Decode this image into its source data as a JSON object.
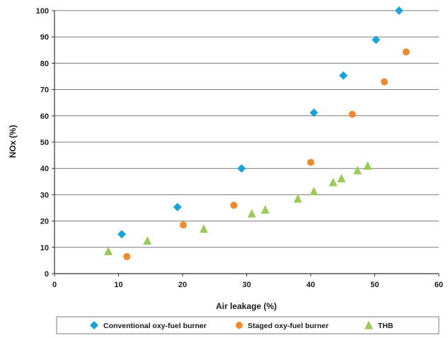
{
  "chart_data": {
    "type": "scatter",
    "title": "",
    "xlabel": "Air leakage (%)",
    "ylabel": "NOx (%)",
    "xlim": [
      0,
      60
    ],
    "ylim": [
      0,
      100
    ],
    "xticks": [
      0,
      10,
      20,
      30,
      40,
      50,
      60
    ],
    "yticks": [
      0,
      10,
      20,
      30,
      40,
      50,
      60,
      70,
      80,
      90,
      100
    ],
    "grid": "horizontal",
    "legend": "bottom",
    "series": [
      {
        "name": "Conventional oxy-fuel burner",
        "marker": "diamond",
        "color": "#1aa3d9",
        "x": [
          10.5,
          19.2,
          29.2,
          40.5,
          45.1,
          50.2,
          53.8
        ],
        "y": [
          15,
          25.3,
          40,
          61.2,
          75.3,
          88.9,
          100
        ]
      },
      {
        "name": "Staged oxy-fuel burner",
        "marker": "circle",
        "color": "#f08a30",
        "x": [
          11.3,
          20.1,
          28.0,
          40.0,
          46.5,
          51.5,
          54.9
        ],
        "y": [
          6.5,
          18.5,
          26.0,
          42.3,
          60.6,
          72.9,
          84.3
        ]
      },
      {
        "name": "THB",
        "marker": "triangle",
        "color": "#9bc95a",
        "x": [
          8.4,
          14.5,
          23.3,
          30.8,
          32.9,
          38.0,
          40.5,
          43.5,
          44.8,
          47.3,
          48.9
        ],
        "y": [
          8.5,
          12.5,
          17.0,
          22.8,
          24.3,
          28.5,
          31.3,
          34.7,
          36.2,
          39.2,
          41.0
        ]
      }
    ]
  }
}
